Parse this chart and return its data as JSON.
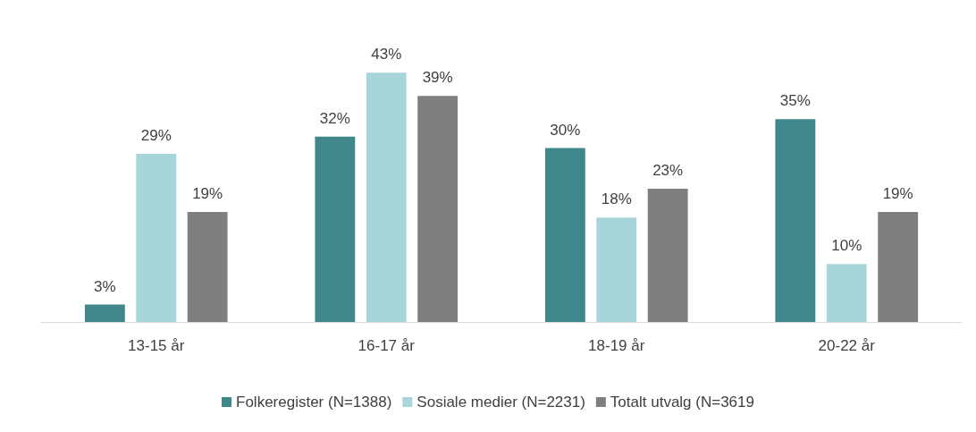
{
  "chart_data": {
    "type": "bar",
    "categories": [
      "13-15 år",
      "16-17 år",
      "18-19 år",
      "20-22 år"
    ],
    "series": [
      {
        "name": "Folkeregister (N=1388)",
        "color": "#3f878b",
        "values": [
          3,
          32,
          30,
          35
        ],
        "value_labels": [
          "3%",
          "32%",
          "30%",
          "35%"
        ]
      },
      {
        "name": "Sosiale medier (N=2231)",
        "color": "#a8d5d9",
        "values": [
          29,
          43,
          18,
          10
        ],
        "value_labels": [
          "29%",
          "43%",
          "18%",
          "10%"
        ]
      },
      {
        "name": "Totalt utvalg (N=3619",
        "color": "#7f7f7f",
        "values": [
          19,
          39,
          23,
          19
        ],
        "value_labels": [
          "19%",
          "39%",
          "23%",
          "19%"
        ]
      }
    ],
    "legend": "bottom"
  }
}
